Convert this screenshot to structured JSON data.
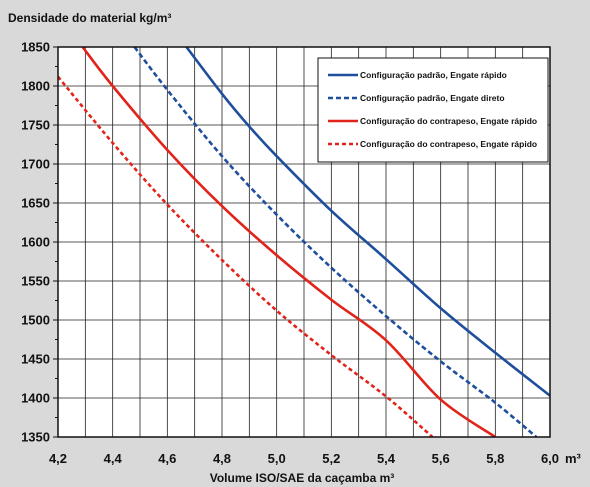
{
  "chart_data": {
    "type": "line",
    "ylabel": "Densidade do material kg/m³",
    "xlabel": "Volume ISO/SAE da caçamba m³",
    "x_unit": "m³",
    "xlim": [
      4.2,
      6.0
    ],
    "ylim": [
      1350,
      1850
    ],
    "x_ticks": [
      "4,2",
      "4,4",
      "4,6",
      "4,8",
      "5,0",
      "5,2",
      "5,4",
      "5,6",
      "5,8",
      "6,0"
    ],
    "y_ticks": [
      "1350",
      "1400",
      "1450",
      "1500",
      "1550",
      "1600",
      "1650",
      "1700",
      "1750",
      "1800",
      "1850"
    ],
    "grid": true,
    "legend_position": "top-right",
    "colors": {
      "blue": "#1f4e9c",
      "red": "#e2231a",
      "plot_bg": "#ffffff",
      "page_bg": "#d9d9d9"
    },
    "series": [
      {
        "name": "Configuração padrão, Engate rápido",
        "color": "#1f4e9c",
        "dash": "solid",
        "x": [
          4.67,
          4.8,
          4.9,
          5.0,
          5.2,
          5.4,
          5.6,
          5.8,
          6.0
        ],
        "y": [
          1850,
          1790,
          1748,
          1710,
          1640,
          1578,
          1515,
          1458,
          1403
        ]
      },
      {
        "name": "Configuração padrão, Engate direto",
        "color": "#1f4e9c",
        "dash": "dashed",
        "x": [
          4.48,
          4.6,
          4.8,
          5.0,
          5.2,
          5.4,
          5.6,
          5.8,
          5.95
        ],
        "y": [
          1850,
          1795,
          1710,
          1635,
          1567,
          1505,
          1447,
          1394,
          1350
        ]
      },
      {
        "name": "Configuração do contrapeso, Engate rápido",
        "color": "#e2231a",
        "dash": "solid",
        "x": [
          4.29,
          4.4,
          4.6,
          4.8,
          5.0,
          5.2,
          5.4,
          5.6,
          5.8
        ],
        "y": [
          1850,
          1800,
          1718,
          1646,
          1583,
          1526,
          1474,
          1398,
          1350
        ]
      },
      {
        "name": "Configuração do contrapeso, Engate rápido",
        "color": "#e2231a",
        "dash": "dotted",
        "x": [
          4.2,
          4.4,
          4.6,
          4.8,
          5.0,
          5.2,
          5.4,
          5.57
        ],
        "y": [
          1812,
          1727,
          1648,
          1577,
          1512,
          1455,
          1402,
          1350
        ]
      }
    ]
  }
}
